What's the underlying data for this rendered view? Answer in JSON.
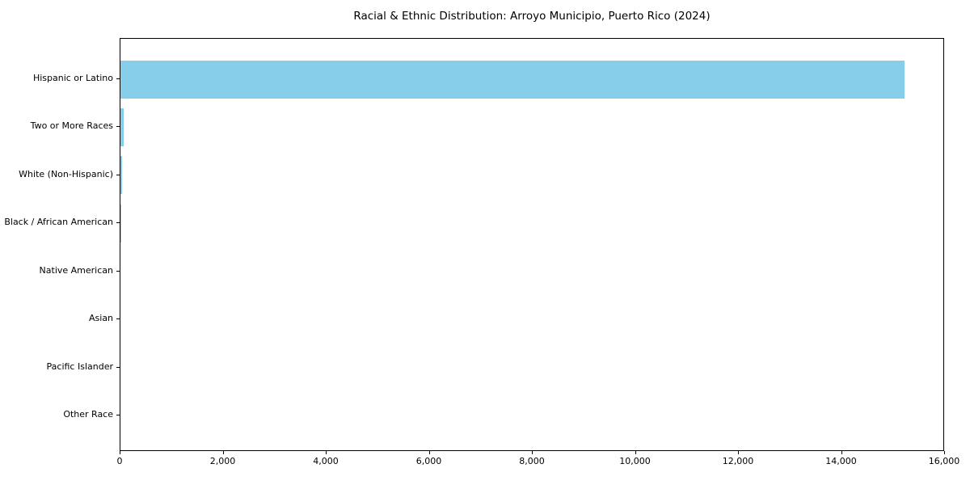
{
  "chart_data": {
    "type": "bar",
    "orientation": "horizontal",
    "title": "Racial & Ethnic Distribution: Arroyo Municipio, Puerto Rico (2024)",
    "categories": [
      "Hispanic or Latino",
      "Two or More Races",
      "White (Non-Hispanic)",
      "Black / African American",
      "Native American",
      "Asian",
      "Pacific Islander",
      "Other Race"
    ],
    "values": [
      15250,
      60,
      25,
      10,
      0,
      0,
      0,
      0
    ],
    "xlabel": "",
    "ylabel": "",
    "xlim": [
      0,
      16000
    ],
    "xticks": [
      0,
      2000,
      4000,
      6000,
      8000,
      10000,
      12000,
      14000,
      16000
    ],
    "xtick_labels": [
      "0",
      "2,000",
      "4,000",
      "6,000",
      "8,000",
      "10,000",
      "12,000",
      "14,000",
      "16,000"
    ],
    "bar_color": "#87CEEB",
    "grid": false,
    "legend": null,
    "background_color": "#ffffff",
    "text_color": "#000000"
  }
}
